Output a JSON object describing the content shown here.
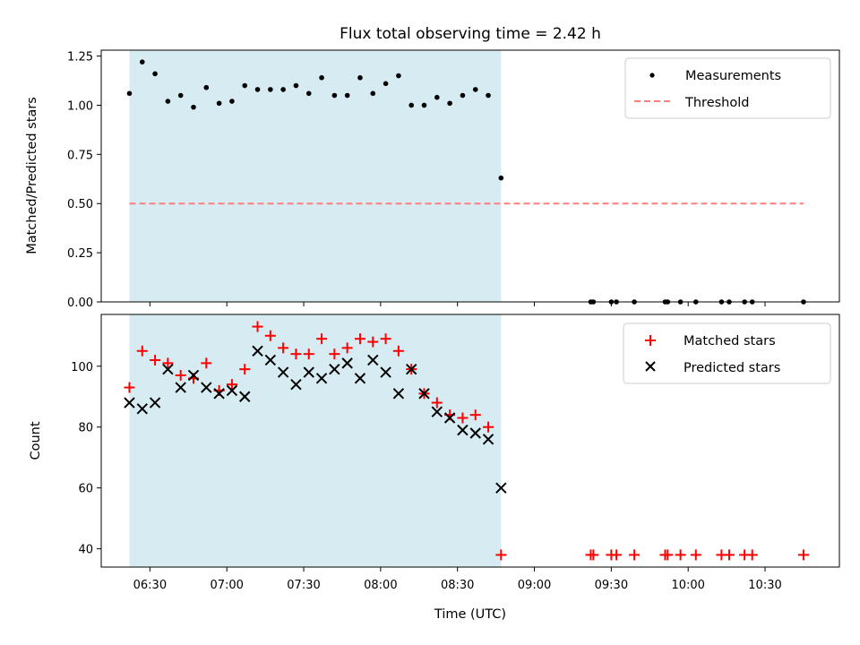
{
  "title": "Flux total observing time = 2.42 h",
  "colors": {
    "shade": "#add8e6",
    "threshold": "#ff7f7f",
    "matched": "#ff0000",
    "predicted": "#000000",
    "measurement": "#000000"
  },
  "chart_data": [
    {
      "type": "scatter",
      "panel": "top",
      "ylabel": "Matched/Predicted stars",
      "ylim": [
        0.0,
        1.28
      ],
      "yticks": [
        0.0,
        0.25,
        0.5,
        0.75,
        1.0,
        1.25
      ],
      "ytick_labels": [
        "0.00",
        "0.25",
        "0.50",
        "0.75",
        "1.00",
        "1.25"
      ],
      "x_unit": "minutes since 00:00 UTC",
      "xlim": [
        371,
        659
      ],
      "xticks": [
        390,
        420,
        450,
        480,
        510,
        540,
        570,
        600,
        630
      ],
      "shaded_interval": [
        "06:22",
        "08:47"
      ],
      "legend_position": "upper right",
      "legend": [
        {
          "label": "Measurements",
          "marker": "dot"
        },
        {
          "label": "Threshold",
          "marker": "dashed-line"
        }
      ],
      "threshold": {
        "y": 0.5,
        "x_range": [
          "06:22",
          "10:45"
        ]
      },
      "series": [
        {
          "name": "Measurements",
          "x": [
            "06:22",
            "06:27",
            "06:32",
            "06:37",
            "06:42",
            "06:47",
            "06:52",
            "06:57",
            "07:02",
            "07:07",
            "07:12",
            "07:17",
            "07:22",
            "07:27",
            "07:32",
            "07:37",
            "07:42",
            "07:47",
            "07:52",
            "07:57",
            "08:02",
            "08:07",
            "08:12",
            "08:17",
            "08:22",
            "08:27",
            "08:32",
            "08:37",
            "08:42",
            "08:47",
            "09:22",
            "09:23",
            "09:30",
            "09:32",
            "09:39",
            "09:51",
            "09:52",
            "09:57",
            "10:03",
            "10:13",
            "10:16",
            "10:22",
            "10:25",
            "10:45"
          ],
          "y": [
            1.06,
            1.22,
            1.16,
            1.02,
            1.05,
            0.99,
            1.09,
            1.01,
            1.02,
            1.1,
            1.08,
            1.08,
            1.08,
            1.1,
            1.06,
            1.14,
            1.05,
            1.05,
            1.14,
            1.06,
            1.11,
            1.15,
            1.0,
            1.0,
            1.04,
            1.01,
            1.05,
            1.08,
            1.05,
            0.63,
            0,
            0,
            0,
            0,
            0,
            0,
            0,
            0,
            0,
            0,
            0,
            0,
            0,
            0
          ]
        }
      ]
    },
    {
      "type": "scatter",
      "panel": "bottom",
      "xlabel": "Time (UTC)",
      "ylabel": "Count",
      "ylim": [
        34,
        117
      ],
      "yticks": [
        40,
        60,
        80,
        100
      ],
      "ytick_labels": [
        "40",
        "60",
        "80",
        "100"
      ],
      "x_unit": "minutes since 00:00 UTC",
      "xlim": [
        371,
        659
      ],
      "xticks": [
        390,
        420,
        450,
        480,
        510,
        540,
        570,
        600,
        630
      ],
      "xtick_labels": [
        "06:30",
        "07:00",
        "07:30",
        "08:00",
        "08:30",
        "09:00",
        "09:30",
        "10:00",
        "10:30"
      ],
      "shaded_interval": [
        "06:22",
        "08:47"
      ],
      "legend_position": "upper right",
      "legend": [
        {
          "label": "Matched stars",
          "marker": "plus"
        },
        {
          "label": "Predicted stars",
          "marker": "x"
        }
      ],
      "series": [
        {
          "name": "Matched stars",
          "x": [
            "06:22",
            "06:27",
            "06:32",
            "06:37",
            "06:42",
            "06:47",
            "06:52",
            "06:57",
            "07:02",
            "07:07",
            "07:12",
            "07:17",
            "07:22",
            "07:27",
            "07:32",
            "07:37",
            "07:42",
            "07:47",
            "07:52",
            "07:57",
            "08:02",
            "08:07",
            "08:12",
            "08:17",
            "08:22",
            "08:27",
            "08:32",
            "08:37",
            "08:42",
            "08:47",
            "09:22",
            "09:23",
            "09:30",
            "09:32",
            "09:39",
            "09:51",
            "09:52",
            "09:57",
            "10:03",
            "10:13",
            "10:16",
            "10:22",
            "10:25",
            "10:45"
          ],
          "y": [
            93,
            105,
            102,
            101,
            97,
            96,
            101,
            92,
            94,
            99,
            113,
            110,
            106,
            104,
            104,
            109,
            104,
            106,
            109,
            108,
            109,
            105,
            99,
            91,
            88,
            84,
            83,
            84,
            80,
            38,
            38,
            38,
            38,
            38,
            38,
            38,
            38,
            38,
            38,
            38,
            38,
            38,
            38,
            38
          ]
        },
        {
          "name": "Predicted stars",
          "x": [
            "06:22",
            "06:27",
            "06:32",
            "06:37",
            "06:42",
            "06:47",
            "06:52",
            "06:57",
            "07:02",
            "07:07",
            "07:12",
            "07:17",
            "07:22",
            "07:27",
            "07:32",
            "07:37",
            "07:42",
            "07:47",
            "07:52",
            "07:57",
            "08:02",
            "08:07",
            "08:12",
            "08:17",
            "08:22",
            "08:27",
            "08:32",
            "08:37",
            "08:42",
            "08:47"
          ],
          "y": [
            88,
            86,
            88,
            99,
            93,
            97,
            93,
            91,
            92,
            90,
            105,
            102,
            98,
            94,
            98,
            96,
            99,
            101,
            96,
            102,
            98,
            91,
            99,
            91,
            85,
            83,
            79,
            78,
            76,
            60
          ]
        }
      ]
    }
  ]
}
